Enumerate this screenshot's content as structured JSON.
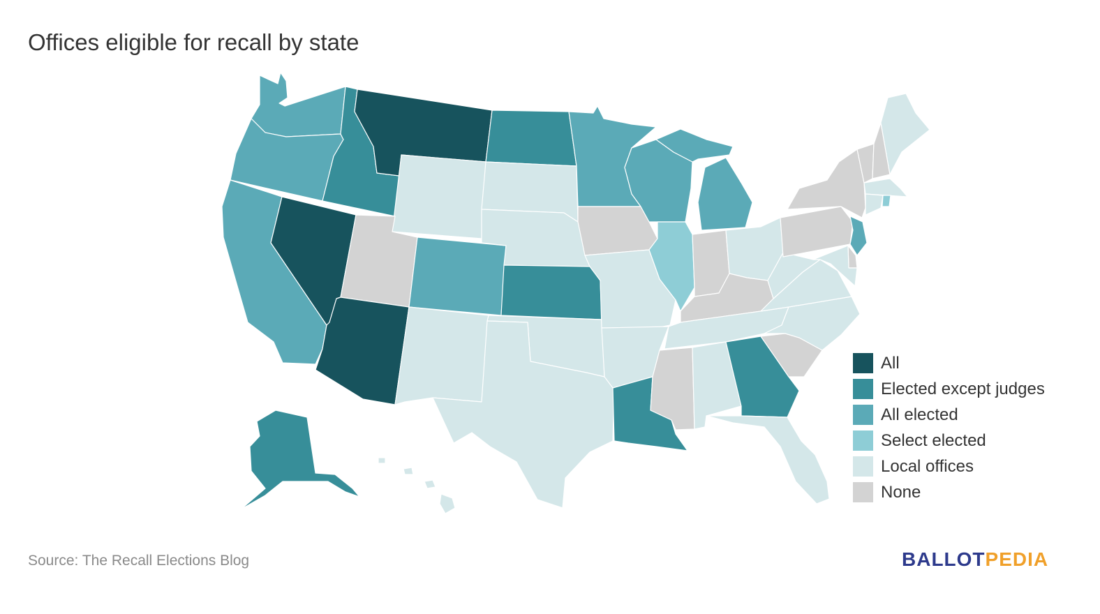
{
  "title": "Offices eligible for recall by state",
  "source": "Source: The Recall Elections Blog",
  "logo": {
    "part1": "BALLOT",
    "part2": "PEDIA",
    "color1": "#2d3a8c",
    "color2": "#f0a02a"
  },
  "legend": [
    {
      "label": "All",
      "color": "#17535d"
    },
    {
      "label": "Elected except judges",
      "color": "#378e99"
    },
    {
      "label": "All elected",
      "color": "#5baab7"
    },
    {
      "label": "Select elected",
      "color": "#8ecdd6"
    },
    {
      "label": "Local offices",
      "color": "#d4e7e9"
    },
    {
      "label": "None",
      "color": "#d3d3d3"
    }
  ],
  "states": {
    "WA": "All elected",
    "OR": "All elected",
    "CA": "All elected",
    "NV": "All",
    "ID": "Elected except judges",
    "MT": "All",
    "WY": "Local offices",
    "UT": "None",
    "AZ": "All",
    "CO": "All elected",
    "NM": "Local offices",
    "ND": "Elected except judges",
    "SD": "Local offices",
    "NE": "Local offices",
    "KS": "Elected except judges",
    "OK": "Local offices",
    "TX": "Local offices",
    "MN": "All elected",
    "IA": "None",
    "MO": "Local offices",
    "AR": "Local offices",
    "LA": "Elected except judges",
    "WI": "All elected",
    "IL": "Select elected",
    "MI": "All elected",
    "IN": "None",
    "OH": "Local offices",
    "KY": "None",
    "TN": "Local offices",
    "MS": "None",
    "AL": "Local offices",
    "GA": "Elected except judges",
    "FL": "Local offices",
    "SC": "None",
    "NC": "Local offices",
    "VA": "Local offices",
    "WV": "Local offices",
    "PA": "None",
    "NY": "None",
    "VT": "None",
    "NH": "None",
    "ME": "Local offices",
    "MA": "Local offices",
    "CT": "Local offices",
    "RI": "Select elected",
    "NJ": "All elected",
    "DE": "None",
    "MD": "Local offices",
    "AK": "Elected except judges",
    "HI": "Local offices"
  }
}
